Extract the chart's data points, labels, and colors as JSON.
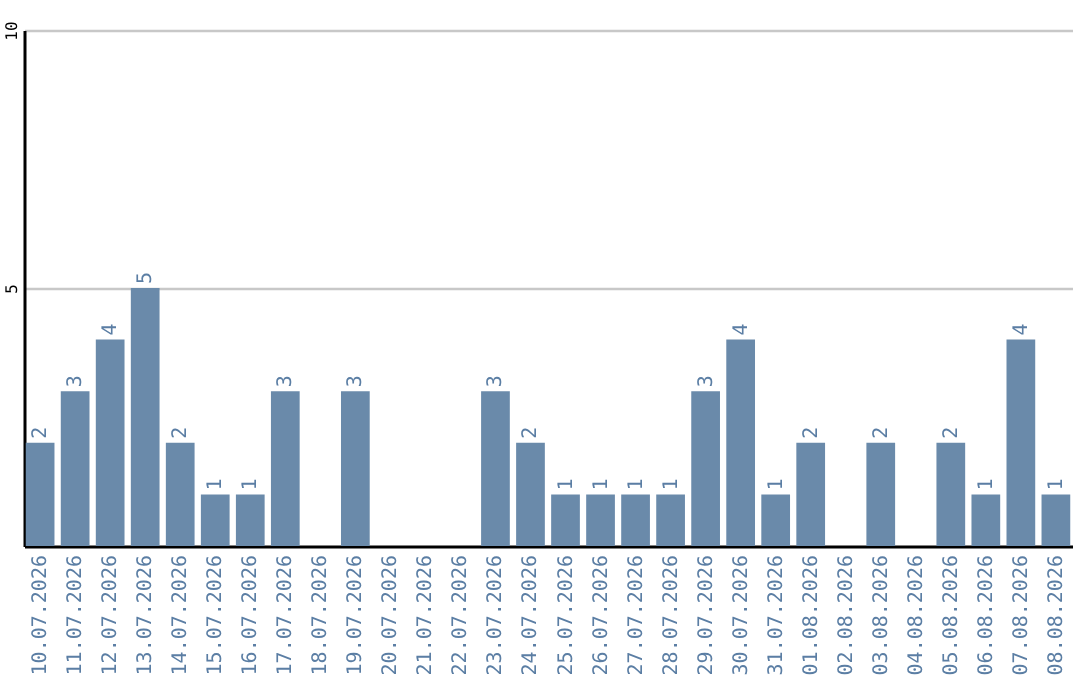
{
  "chart_data": {
    "type": "bar",
    "categories": [
      "10.07.2026",
      "11.07.2026",
      "12.07.2026",
      "13.07.2026",
      "14.07.2026",
      "15.07.2026",
      "16.07.2026",
      "17.07.2026",
      "18.07.2026",
      "19.07.2026",
      "20.07.2026",
      "21.07.2026",
      "22.07.2026",
      "23.07.2026",
      "24.07.2026",
      "25.07.2026",
      "26.07.2026",
      "27.07.2026",
      "28.07.2026",
      "29.07.2026",
      "30.07.2026",
      "31.07.2026",
      "01.08.2026",
      "02.08.2026",
      "03.08.2026",
      "04.08.2026",
      "05.08.2026",
      "06.08.2026",
      "07.08.2026",
      "08.08.2026"
    ],
    "values": [
      2,
      3,
      4,
      5,
      2,
      1,
      1,
      3,
      0,
      3,
      0,
      0,
      0,
      3,
      2,
      1,
      1,
      1,
      1,
      3,
      4,
      1,
      2,
      0,
      2,
      0,
      2,
      1,
      4,
      1
    ],
    "value_labels": [
      "2",
      "3",
      "4",
      "5",
      "2",
      "1",
      "1",
      "3",
      null,
      "3",
      null,
      null,
      null,
      "3",
      "2",
      "1",
      "1",
      "1",
      "1",
      "3",
      "4",
      "1",
      "2",
      null,
      "2",
      null,
      "2",
      "1",
      "4",
      "1"
    ],
    "color": "#6a8aaa",
    "ylim": [
      0,
      10
    ],
    "yticks": [
      5,
      10
    ],
    "grid": "y"
  }
}
